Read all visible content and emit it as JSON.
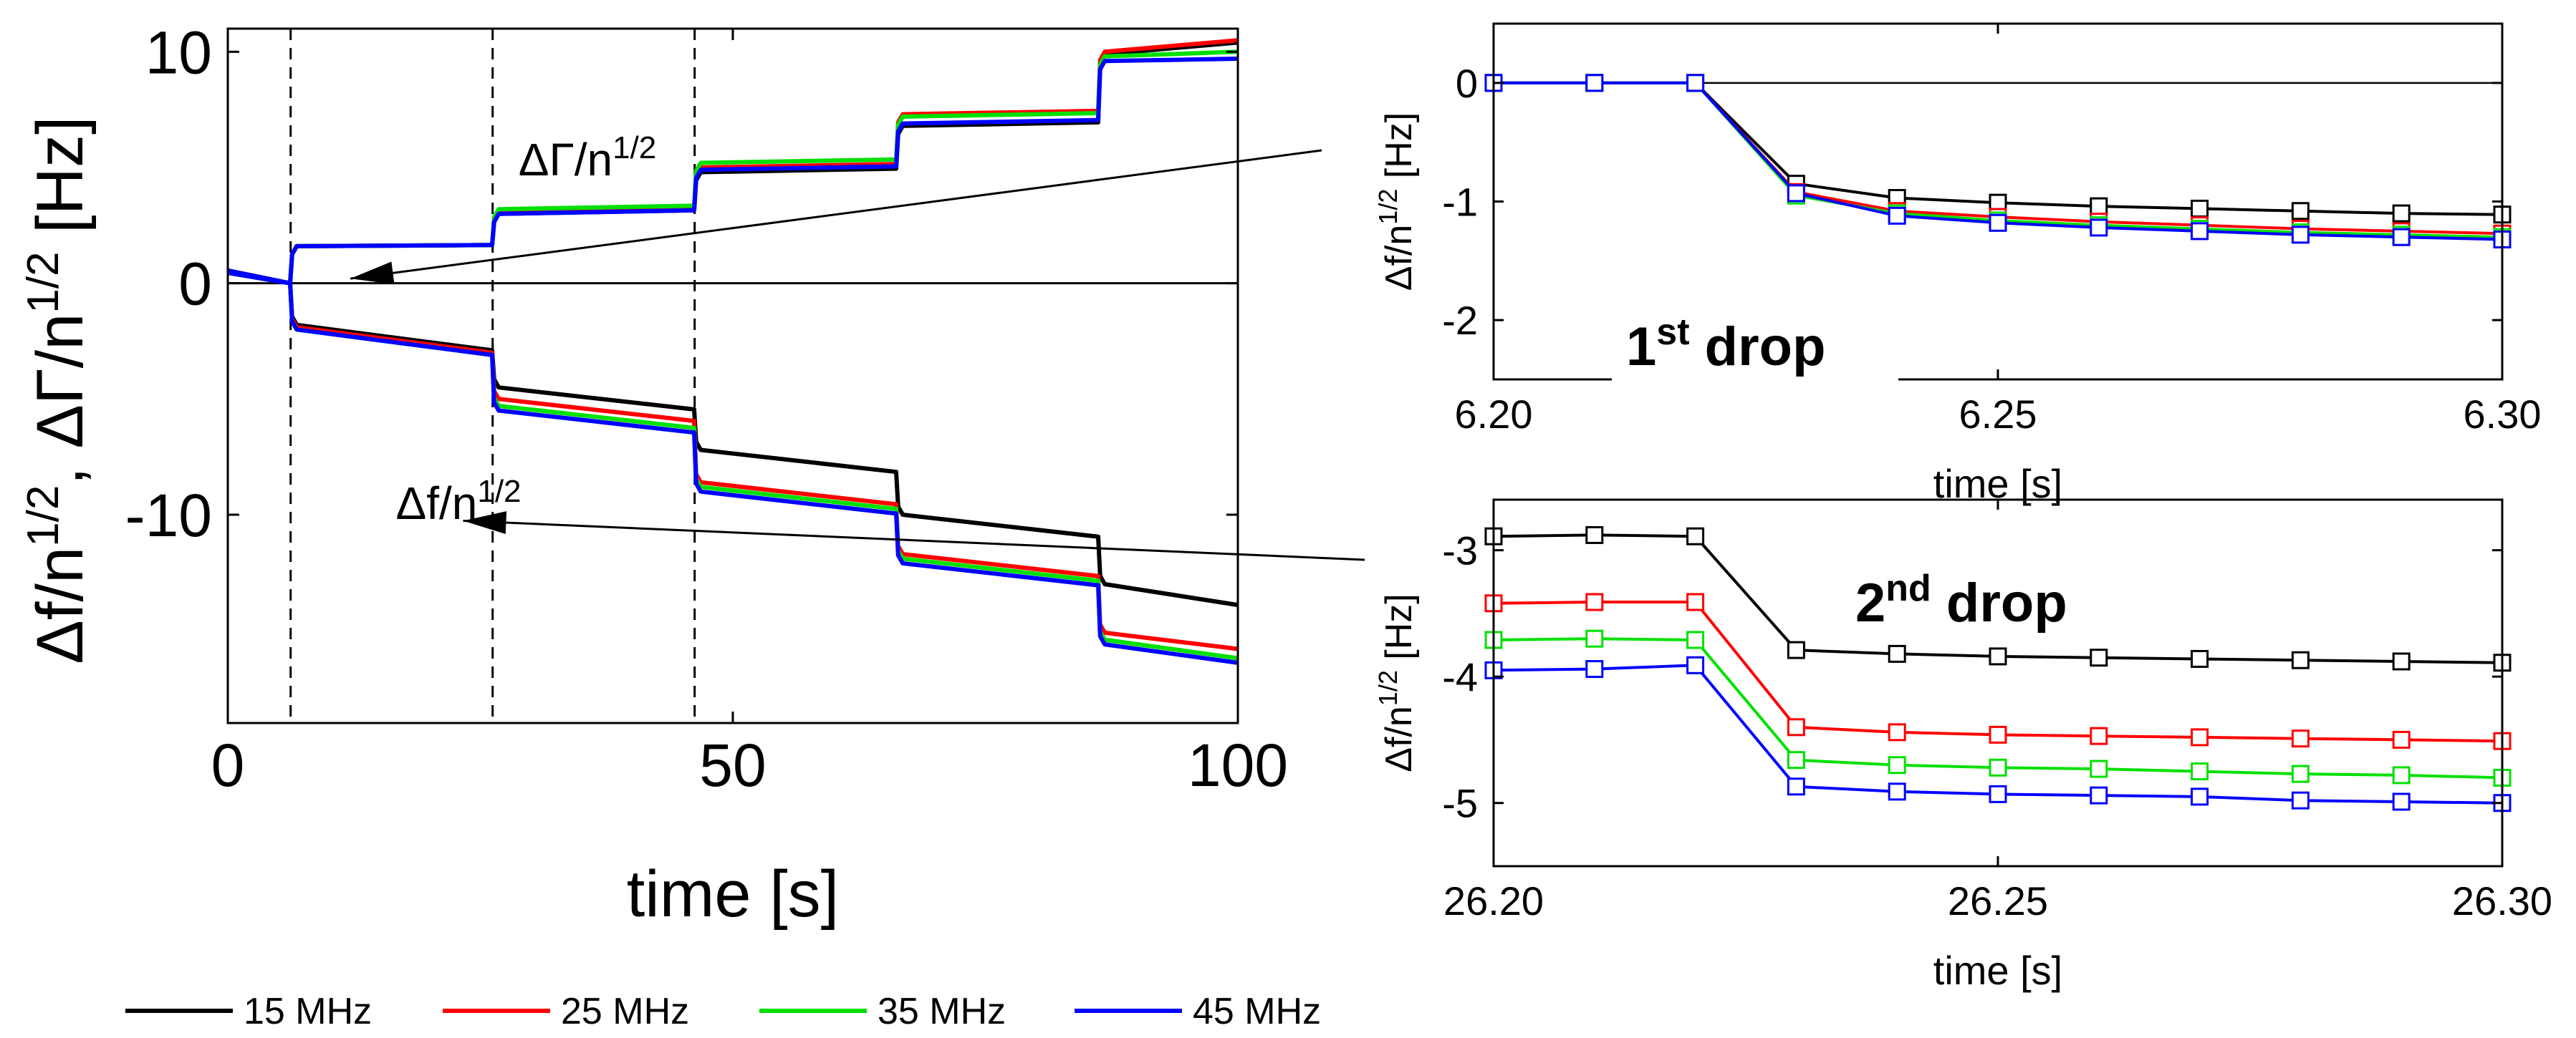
{
  "colors": {
    "15 MHz": "#000000",
    "25 MHz": "#ff0000",
    "35 MHz": "#00e000",
    "45 MHz": "#0000ff"
  },
  "legend": [
    "15 MHz",
    "25 MHz",
    "35 MHz",
    "45 MHz"
  ],
  "chart_data": [
    {
      "id": "main",
      "type": "line",
      "title": "",
      "xlabel": "time [s]",
      "ylabel_parts": [
        "Δf/n",
        "1/2",
        ", ΔΓ/n",
        "1/2",
        " [Hz]"
      ],
      "xlim": [
        0,
        100
      ],
      "ylim": [
        -19,
        11
      ],
      "xticks": [
        0,
        50,
        100
      ],
      "xtick_labels": [
        "0",
        "50",
        "100"
      ],
      "yticks": [
        10,
        0,
        -10
      ],
      "ytick_labels": [
        "10",
        "0",
        "-10"
      ],
      "drop_times": [
        6.22,
        26.22,
        46.22
      ],
      "annotations": [
        {
          "parts": [
            "ΔΓ/n",
            "1/2"
          ],
          "arrow_to": [
            10,
            0.2
          ]
        },
        {
          "parts": [
            "Δf/n",
            "1/2"
          ],
          "arrow_to": [
            35,
            -10.2
          ]
        }
      ],
      "step_times": [
        0,
        6.22,
        26.22,
        46.22,
        66.22,
        86.22,
        100
      ],
      "series": [
        {
          "name": "15 MHz",
          "gamma": [
            0,
            1.6,
            3.0,
            4.8,
            6.8,
            9.9,
            10.4
          ],
          "f": [
            0,
            -1.8,
            -4.5,
            -7.2,
            -10.0,
            -13.0,
            -13.9
          ]
        },
        {
          "name": "25 MHz",
          "gamma": [
            0,
            1.6,
            3.1,
            5.0,
            7.3,
            10.0,
            10.5
          ],
          "f": [
            0,
            -1.9,
            -5.0,
            -8.6,
            -11.7,
            -15.1,
            -15.8
          ]
        },
        {
          "name": "35 MHz",
          "gamma": [
            0,
            1.6,
            3.2,
            5.2,
            7.2,
            9.8,
            10.0
          ],
          "f": [
            0,
            -2.0,
            -5.3,
            -8.8,
            -11.9,
            -15.4,
            -16.2
          ]
        },
        {
          "name": "45 MHz",
          "gamma": [
            0,
            1.6,
            3.0,
            4.9,
            6.9,
            9.6,
            9.7
          ],
          "f": [
            0,
            -2.0,
            -5.5,
            -9.0,
            -12.1,
            -15.6,
            -16.4
          ]
        }
      ]
    },
    {
      "id": "drop1",
      "type": "line",
      "title": "1st drop",
      "title_parts": [
        "1",
        "st",
        " drop"
      ],
      "xlabel": "time [s]",
      "ylabel_parts": [
        "Δf/n",
        "1/2",
        " [Hz]"
      ],
      "xlim": [
        6.2,
        6.3
      ],
      "ylim": [
        -2.5,
        0.5
      ],
      "xticks": [
        6.2,
        6.25,
        6.3
      ],
      "xtick_labels": [
        "6.20",
        "6.25",
        "6.30"
      ],
      "yticks": [
        0,
        -1,
        -2
      ],
      "ytick_labels": [
        "0",
        "-1",
        "-2"
      ],
      "x": [
        6.2,
        6.21,
        6.22,
        6.23,
        6.24,
        6.25,
        6.26,
        6.27,
        6.28,
        6.29,
        6.3
      ],
      "series": [
        {
          "name": "15 MHz",
          "values": [
            0,
            0,
            0,
            -0.85,
            -0.97,
            -1.01,
            -1.04,
            -1.06,
            -1.08,
            -1.1,
            -1.11
          ]
        },
        {
          "name": "25 MHz",
          "values": [
            0,
            0,
            0,
            -0.92,
            -1.08,
            -1.13,
            -1.17,
            -1.2,
            -1.23,
            -1.25,
            -1.27
          ]
        },
        {
          "name": "35 MHz",
          "values": [
            0,
            0,
            0,
            -0.95,
            -1.1,
            -1.16,
            -1.2,
            -1.23,
            -1.26,
            -1.28,
            -1.3
          ]
        },
        {
          "name": "45 MHz",
          "values": [
            0,
            0,
            0,
            -0.93,
            -1.12,
            -1.18,
            -1.22,
            -1.25,
            -1.28,
            -1.3,
            -1.32
          ]
        }
      ]
    },
    {
      "id": "drop2",
      "type": "line",
      "title": "2nd drop",
      "title_parts": [
        "2",
        "nd",
        " drop"
      ],
      "xlabel": "time [s]",
      "ylabel_parts": [
        "Δf/n",
        "1/2",
        " [Hz]"
      ],
      "xlim": [
        26.2,
        26.3
      ],
      "ylim": [
        -5.5,
        -2.6
      ],
      "xticks": [
        26.2,
        26.25,
        26.3
      ],
      "xtick_labels": [
        "26.20",
        "26.25",
        "26.30"
      ],
      "yticks": [
        -3,
        -4,
        -5
      ],
      "ytick_labels": [
        "-3",
        "-4",
        "-5"
      ],
      "x": [
        26.2,
        26.21,
        26.22,
        26.23,
        26.24,
        26.25,
        26.26,
        26.27,
        26.28,
        26.29,
        26.3
      ],
      "series": [
        {
          "name": "15 MHz",
          "values": [
            -2.89,
            -2.88,
            -2.89,
            -3.79,
            -3.82,
            -3.84,
            -3.85,
            -3.86,
            -3.87,
            -3.88,
            -3.89
          ]
        },
        {
          "name": "25 MHz",
          "values": [
            -3.42,
            -3.41,
            -3.41,
            -4.4,
            -4.44,
            -4.46,
            -4.47,
            -4.48,
            -4.49,
            -4.5,
            -4.51
          ]
        },
        {
          "name": "35 MHz",
          "values": [
            -3.71,
            -3.7,
            -3.71,
            -4.66,
            -4.7,
            -4.72,
            -4.73,
            -4.75,
            -4.77,
            -4.78,
            -4.8
          ]
        },
        {
          "name": "45 MHz",
          "values": [
            -3.95,
            -3.94,
            -3.91,
            -4.87,
            -4.91,
            -4.93,
            -4.94,
            -4.95,
            -4.98,
            -4.99,
            -5.0
          ]
        }
      ]
    }
  ]
}
